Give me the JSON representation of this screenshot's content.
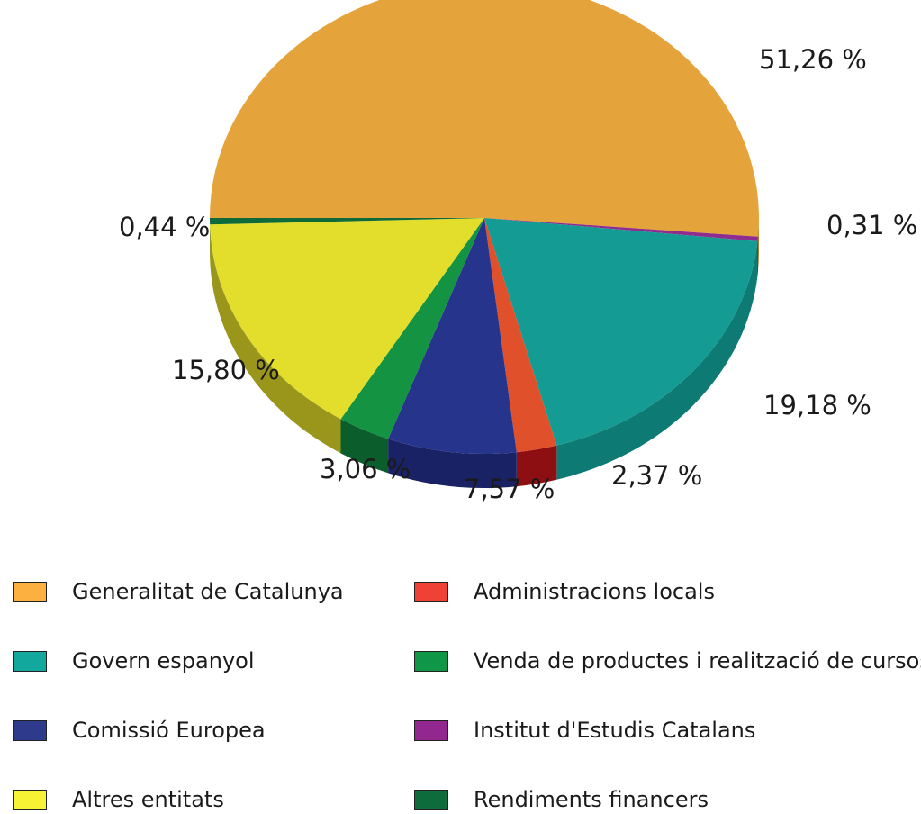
{
  "chart_data": {
    "type": "pie",
    "title": "",
    "slices": [
      {
        "name": "Generalitat de Catalunya",
        "value": 51.26,
        "label": "51,26 %",
        "color": "#e5a33b",
        "side": "#b07a25"
      },
      {
        "name": "Institut d'Estudis Catalans",
        "value": 0.31,
        "label": "0,31 %",
        "color": "#8e2d8e",
        "side": "#6a1f6a"
      },
      {
        "name": "Govern espanyol",
        "value": 19.18,
        "label": "19,18 %",
        "color": "#149b94",
        "side": "#0e7a74"
      },
      {
        "name": "Administracions locals",
        "value": 2.37,
        "label": "2,37 %",
        "color": "#e0502a",
        "side": "#8e0f12"
      },
      {
        "name": "Comissió Europea",
        "value": 7.57,
        "label": "7,57 %",
        "color": "#27348b",
        "side": "#1a2266"
      },
      {
        "name": "Venda de productes i realització de cursos",
        "value": 3.06,
        "label": "3,06 %",
        "color": "#149442",
        "side": "#0b5e2c"
      },
      {
        "name": "Altres entitats",
        "value": 15.8,
        "label": "15,80 %",
        "color": "#e3de2b",
        "side": "#9a961c"
      },
      {
        "name": "Rendiments financers",
        "value": 0.44,
        "label": "0,44 %",
        "color": "#0f6a3a",
        "side": "#0a4a28"
      }
    ],
    "legend_placement": "bottom"
  },
  "legend": [
    {
      "label": "Generalitat de Catalunya",
      "color": "#fbb040"
    },
    {
      "label": "Govern espanyol",
      "color": "#13a89e"
    },
    {
      "label": "Comissió Europea",
      "color": "#2e3a8c"
    },
    {
      "label": "Altres entitats",
      "color": "#f7f234"
    },
    {
      "label": "Administracions locals",
      "color": "#ef4136"
    },
    {
      "label": "Venda de productes i realització de cursos",
      "color": "#0f9647"
    },
    {
      "label": "Institut d'Estudis Catalans",
      "color": "#92278f"
    },
    {
      "label": "Rendiments financers",
      "color": "#0d6b3c"
    }
  ]
}
